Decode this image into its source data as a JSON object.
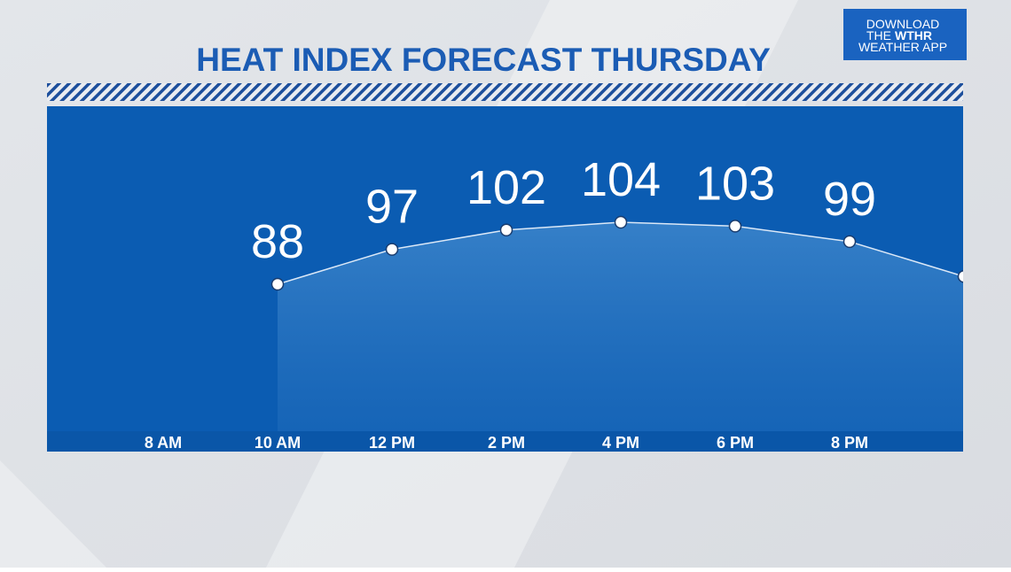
{
  "badge": {
    "line1": "DOWNLOAD",
    "line2a": "THE",
    "line2b": "WTHR",
    "line3": "WEATHER APP"
  },
  "chart_data": {
    "type": "line",
    "title": "HEAT INDEX FORECAST THURSDAY",
    "categories": [
      "8 AM",
      "10 AM",
      "12 PM",
      "2 PM",
      "4 PM",
      "6 PM",
      "8 PM",
      null
    ],
    "values": [
      null,
      88,
      97,
      102,
      104,
      103,
      99,
      90
    ],
    "color": "#dbe8f7"
  }
}
